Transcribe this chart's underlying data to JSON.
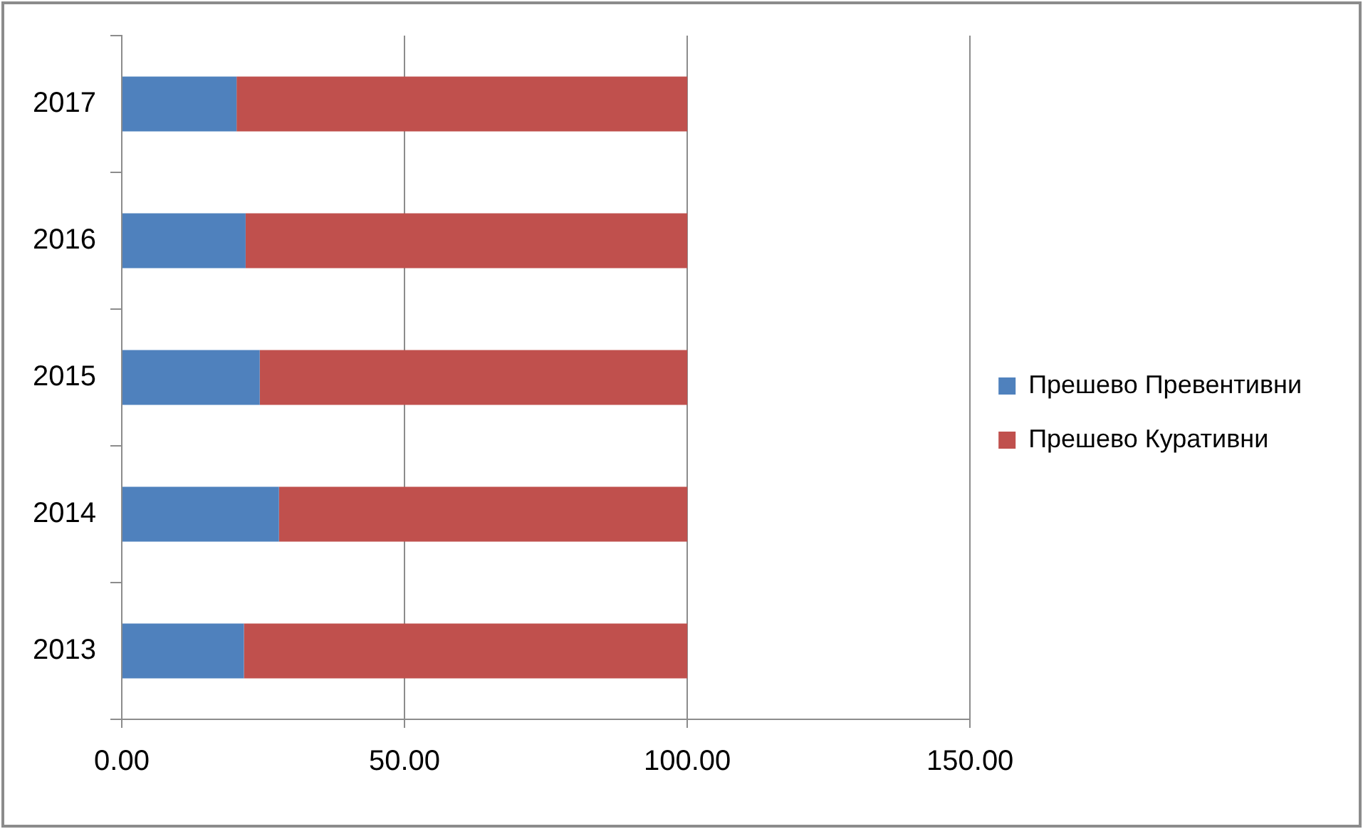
{
  "chart_data": {
    "type": "bar",
    "orientation": "horizontal",
    "stacked": true,
    "categories": [
      "2017",
      "2016",
      "2015",
      "2014",
      "2013"
    ],
    "series": [
      {
        "name": "Прешево Превентивни",
        "color": "#4f81bd",
        "values": [
          20.3,
          21.9,
          24.4,
          27.8,
          21.6
        ]
      },
      {
        "name": "Прешево Куративни",
        "color": "#c0504d",
        "values": [
          79.7,
          78.1,
          75.6,
          72.2,
          78.4
        ]
      }
    ],
    "xlim": [
      0,
      150
    ],
    "xticks": [
      {
        "value": 0,
        "label": "0.00"
      },
      {
        "value": 50,
        "label": "50.00"
      },
      {
        "value": 100,
        "label": "100.00"
      },
      {
        "value": 150,
        "label": "150.00"
      }
    ],
    "grid": "x",
    "legend": "right"
  }
}
